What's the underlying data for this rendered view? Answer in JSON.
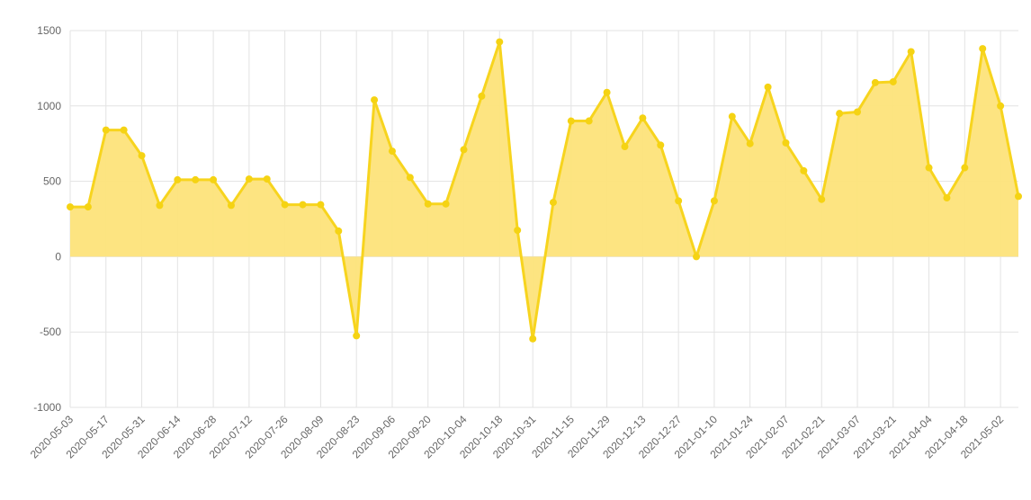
{
  "chart_data": {
    "type": "area",
    "title": "",
    "xlabel": "",
    "ylabel": "",
    "ylim": [
      -1000,
      1500
    ],
    "yticks": [
      1500,
      1000,
      500,
      0,
      -500,
      -1000
    ],
    "grid": true,
    "legend": "none",
    "colors": {
      "fill": "#fde37a",
      "line": "#f7d41e",
      "point": "#f5d313",
      "grid": "#e3e3e3"
    },
    "x_tick_labels": [
      "2020-05-03",
      "2020-05-17",
      "2020-05-31",
      "2020-06-14",
      "2020-06-28",
      "2020-07-12",
      "2020-07-26",
      "2020-08-09",
      "2020-08-23",
      "2020-09-06",
      "2020-09-20",
      "2020-10-04",
      "2020-10-18",
      "2020-10-31",
      "2020-11-15",
      "2020-11-29",
      "2020-12-13",
      "2020-12-27",
      "2021-01-10",
      "2021-01-24",
      "2021-02-07",
      "2021-02-21",
      "2021-03-07",
      "2021-03-21",
      "2021-04-04",
      "2021-04-18",
      "2021-05-02"
    ],
    "x": [
      "2020-05-03",
      "2020-05-10",
      "2020-05-17",
      "2020-05-24",
      "2020-05-31",
      "2020-06-07",
      "2020-06-14",
      "2020-06-21",
      "2020-06-28",
      "2020-07-05",
      "2020-07-12",
      "2020-07-19",
      "2020-07-26",
      "2020-08-02",
      "2020-08-09",
      "2020-08-16",
      "2020-08-23",
      "2020-08-30",
      "2020-09-06",
      "2020-09-13",
      "2020-09-20",
      "2020-09-27",
      "2020-10-04",
      "2020-10-11",
      "2020-10-18",
      "2020-10-25",
      "2020-10-31",
      "2020-11-08",
      "2020-11-15",
      "2020-11-22",
      "2020-11-29",
      "2020-12-06",
      "2020-12-13",
      "2020-12-20",
      "2020-12-27",
      "2021-01-03",
      "2021-01-10",
      "2021-01-17",
      "2021-01-24",
      "2021-01-31",
      "2021-02-07",
      "2021-02-14",
      "2021-02-21",
      "2021-02-28",
      "2021-03-07",
      "2021-03-14",
      "2021-03-21",
      "2021-03-28",
      "2021-04-04",
      "2021-04-11",
      "2021-04-18",
      "2021-04-25",
      "2021-05-02",
      "2021-05-09"
    ],
    "series": [
      {
        "values": [
          330,
          330,
          840,
          840,
          670,
          340,
          510,
          510,
          510,
          340,
          515,
          515,
          345,
          345,
          345,
          170,
          -525,
          1040,
          700,
          525,
          350,
          350,
          710,
          1065,
          1425,
          175,
          -545,
          360,
          900,
          900,
          1090,
          730,
          920,
          740,
          370,
          0,
          370,
          930,
          750,
          1125,
          755,
          570,
          380,
          950,
          960,
          1155,
          1160,
          1360,
          590,
          390,
          590,
          1380,
          1000,
          400
        ]
      }
    ]
  }
}
